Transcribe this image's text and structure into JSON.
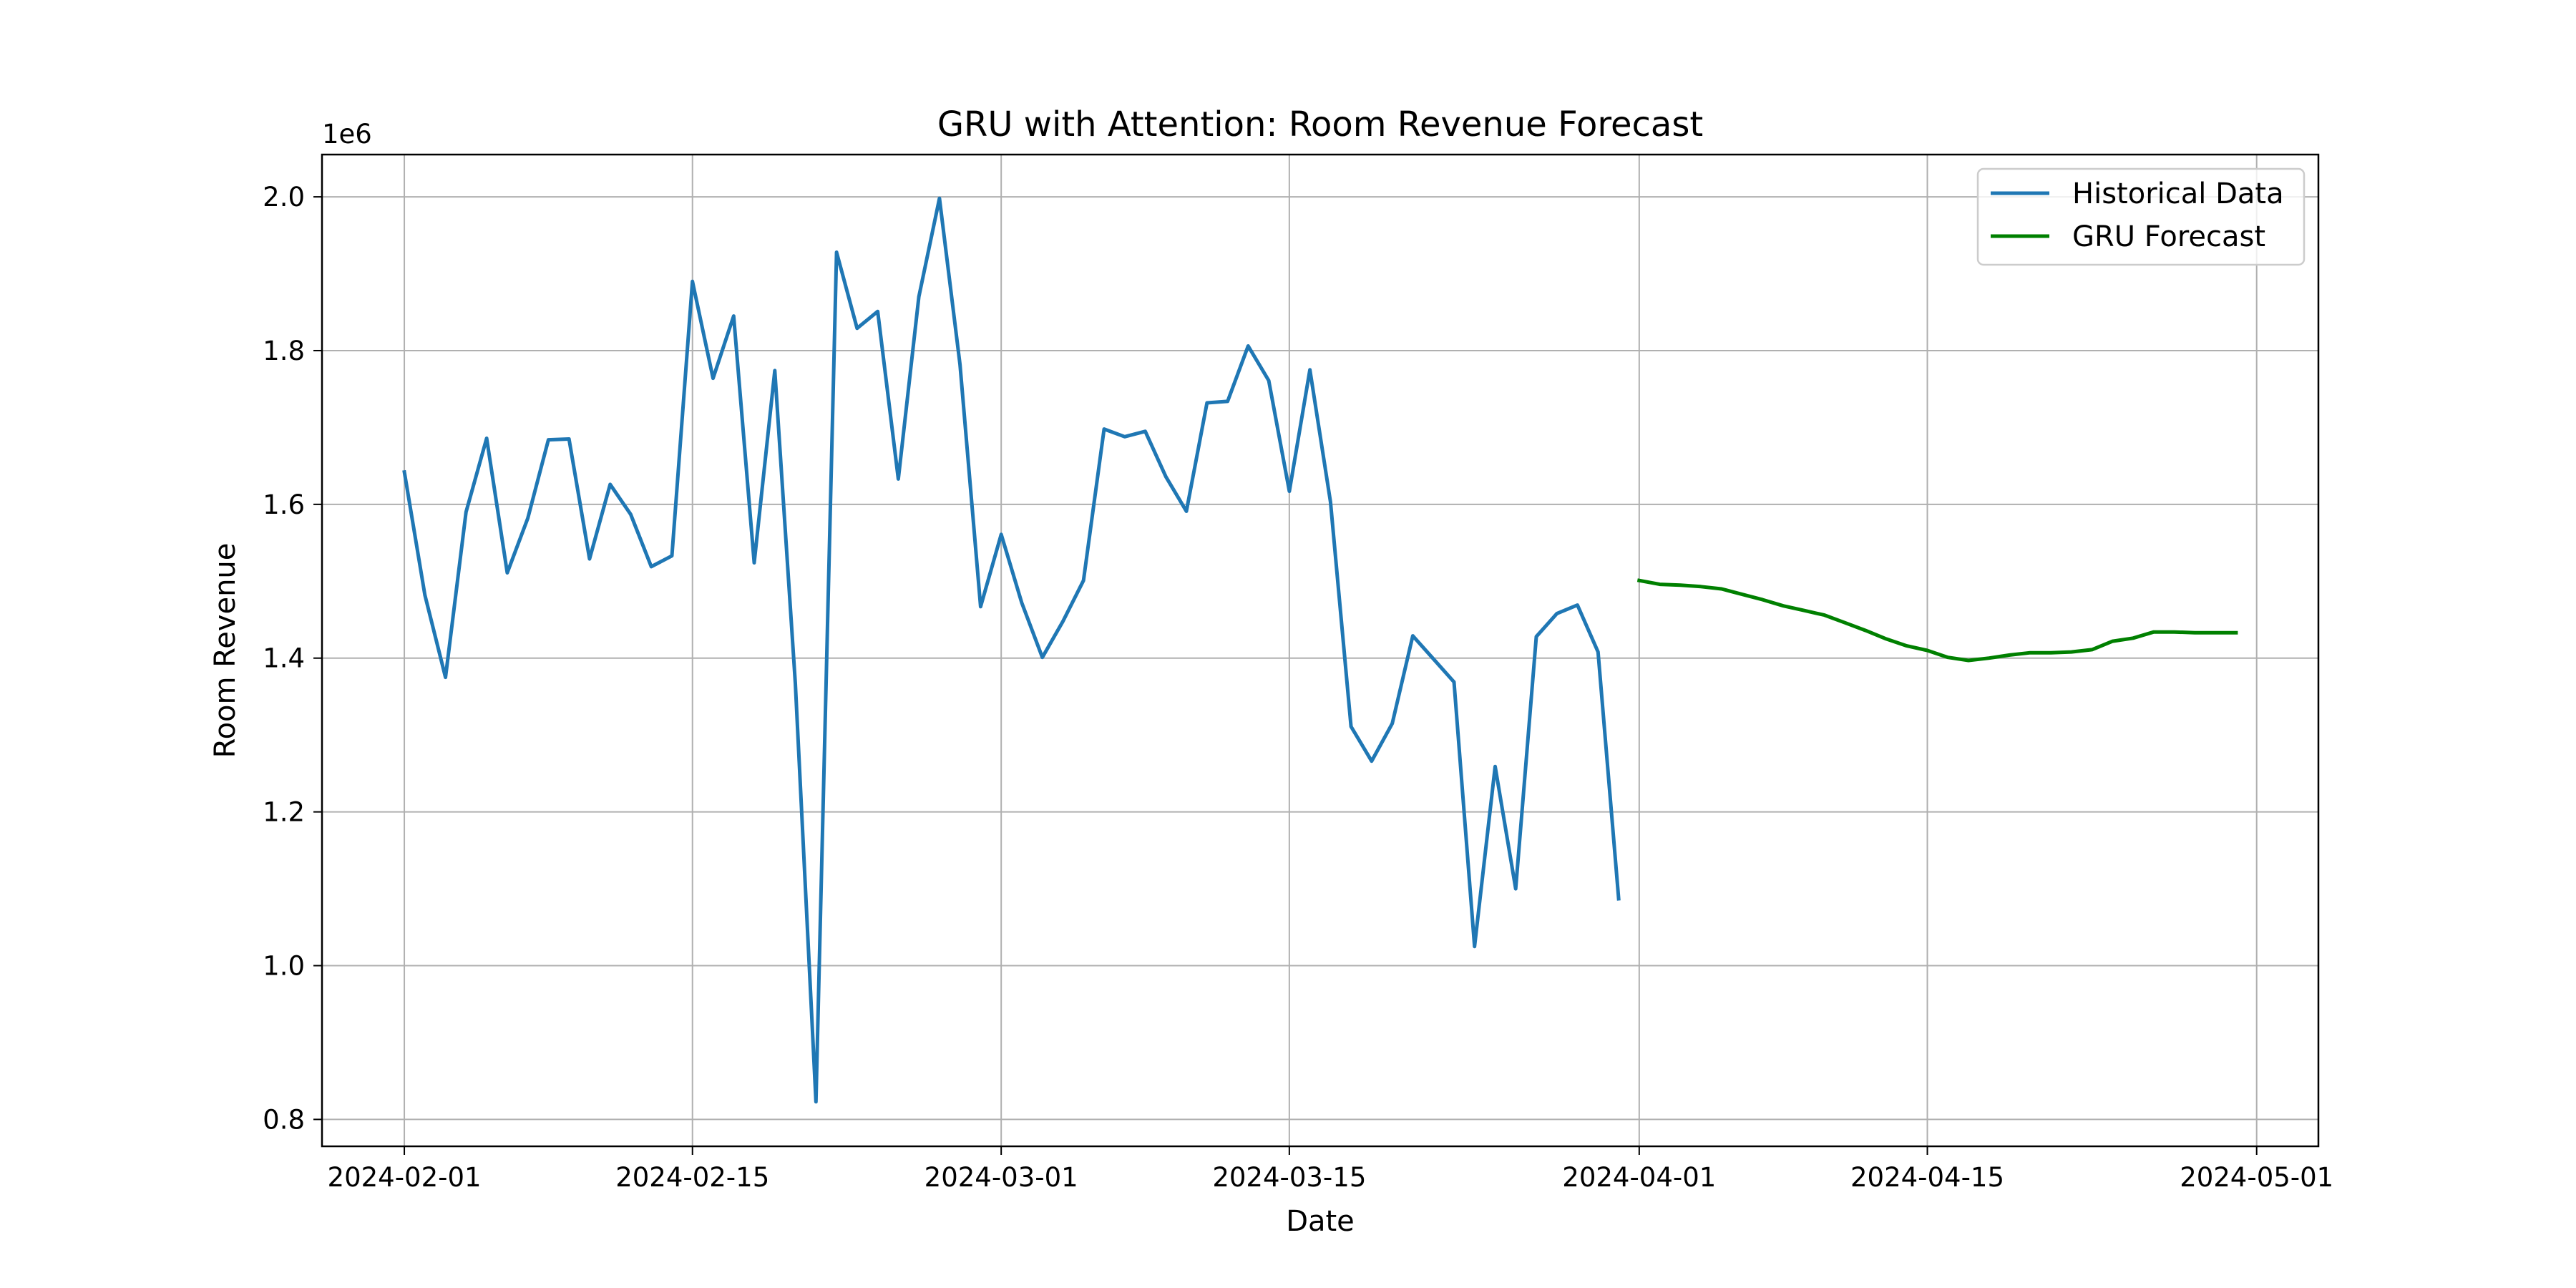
{
  "chart_data": {
    "type": "line",
    "title": "GRU with Attention: Room Revenue Forecast",
    "xlabel": "Date",
    "ylabel": "Room Revenue",
    "y_offset_label": "1e6",
    "y_scale": 1000000,
    "grid": true,
    "legend_position": "top-right",
    "xlim": [
      "2024-01-28",
      "2024-05-04"
    ],
    "ylim": [
      0.765,
      2.055
    ],
    "x_ticks": [
      "2024-02-01",
      "2024-02-15",
      "2024-03-01",
      "2024-03-15",
      "2024-04-01",
      "2024-04-15",
      "2024-05-01"
    ],
    "y_ticks": [
      0.8,
      1.0,
      1.2,
      1.4,
      1.6,
      1.8,
      2.0
    ],
    "y_tick_labels": [
      "0.8",
      "1.0",
      "1.2",
      "1.4",
      "1.6",
      "1.8",
      "2.0"
    ],
    "series": [
      {
        "name": "Historical Data",
        "color": "#1f77b4",
        "start_date": "2024-02-01",
        "values": [
          1.642,
          1.482,
          1.375,
          1.59,
          1.686,
          1.511,
          1.582,
          1.684,
          1.685,
          1.529,
          1.626,
          1.587,
          1.519,
          1.533,
          1.89,
          1.764,
          1.845,
          1.524,
          1.774,
          1.367,
          0.823,
          1.928,
          1.829,
          1.851,
          1.633,
          1.87,
          1.998,
          1.782,
          1.467,
          1.561,
          1.472,
          1.401,
          1.448,
          1.501,
          1.698,
          1.688,
          1.695,
          1.636,
          1.591,
          1.732,
          1.734,
          1.806,
          1.761,
          1.617,
          1.775,
          1.603,
          1.311,
          1.266,
          1.315,
          1.429,
          1.399,
          1.369,
          1.025,
          1.259,
          1.1,
          1.428,
          1.458,
          1.469,
          1.408,
          1.087
        ]
      },
      {
        "name": "GRU Forecast",
        "color": "#008000",
        "start_date": "2024-04-01",
        "values": [
          1.501,
          1.496,
          1.495,
          1.493,
          1.49,
          1.483,
          1.476,
          1.468,
          1.462,
          1.456,
          1.446,
          1.436,
          1.425,
          1.416,
          1.41,
          1.401,
          1.397,
          1.4,
          1.404,
          1.407,
          1.407,
          1.408,
          1.411,
          1.422,
          1.426,
          1.434,
          1.434,
          1.433,
          1.433,
          1.433
        ]
      }
    ]
  }
}
